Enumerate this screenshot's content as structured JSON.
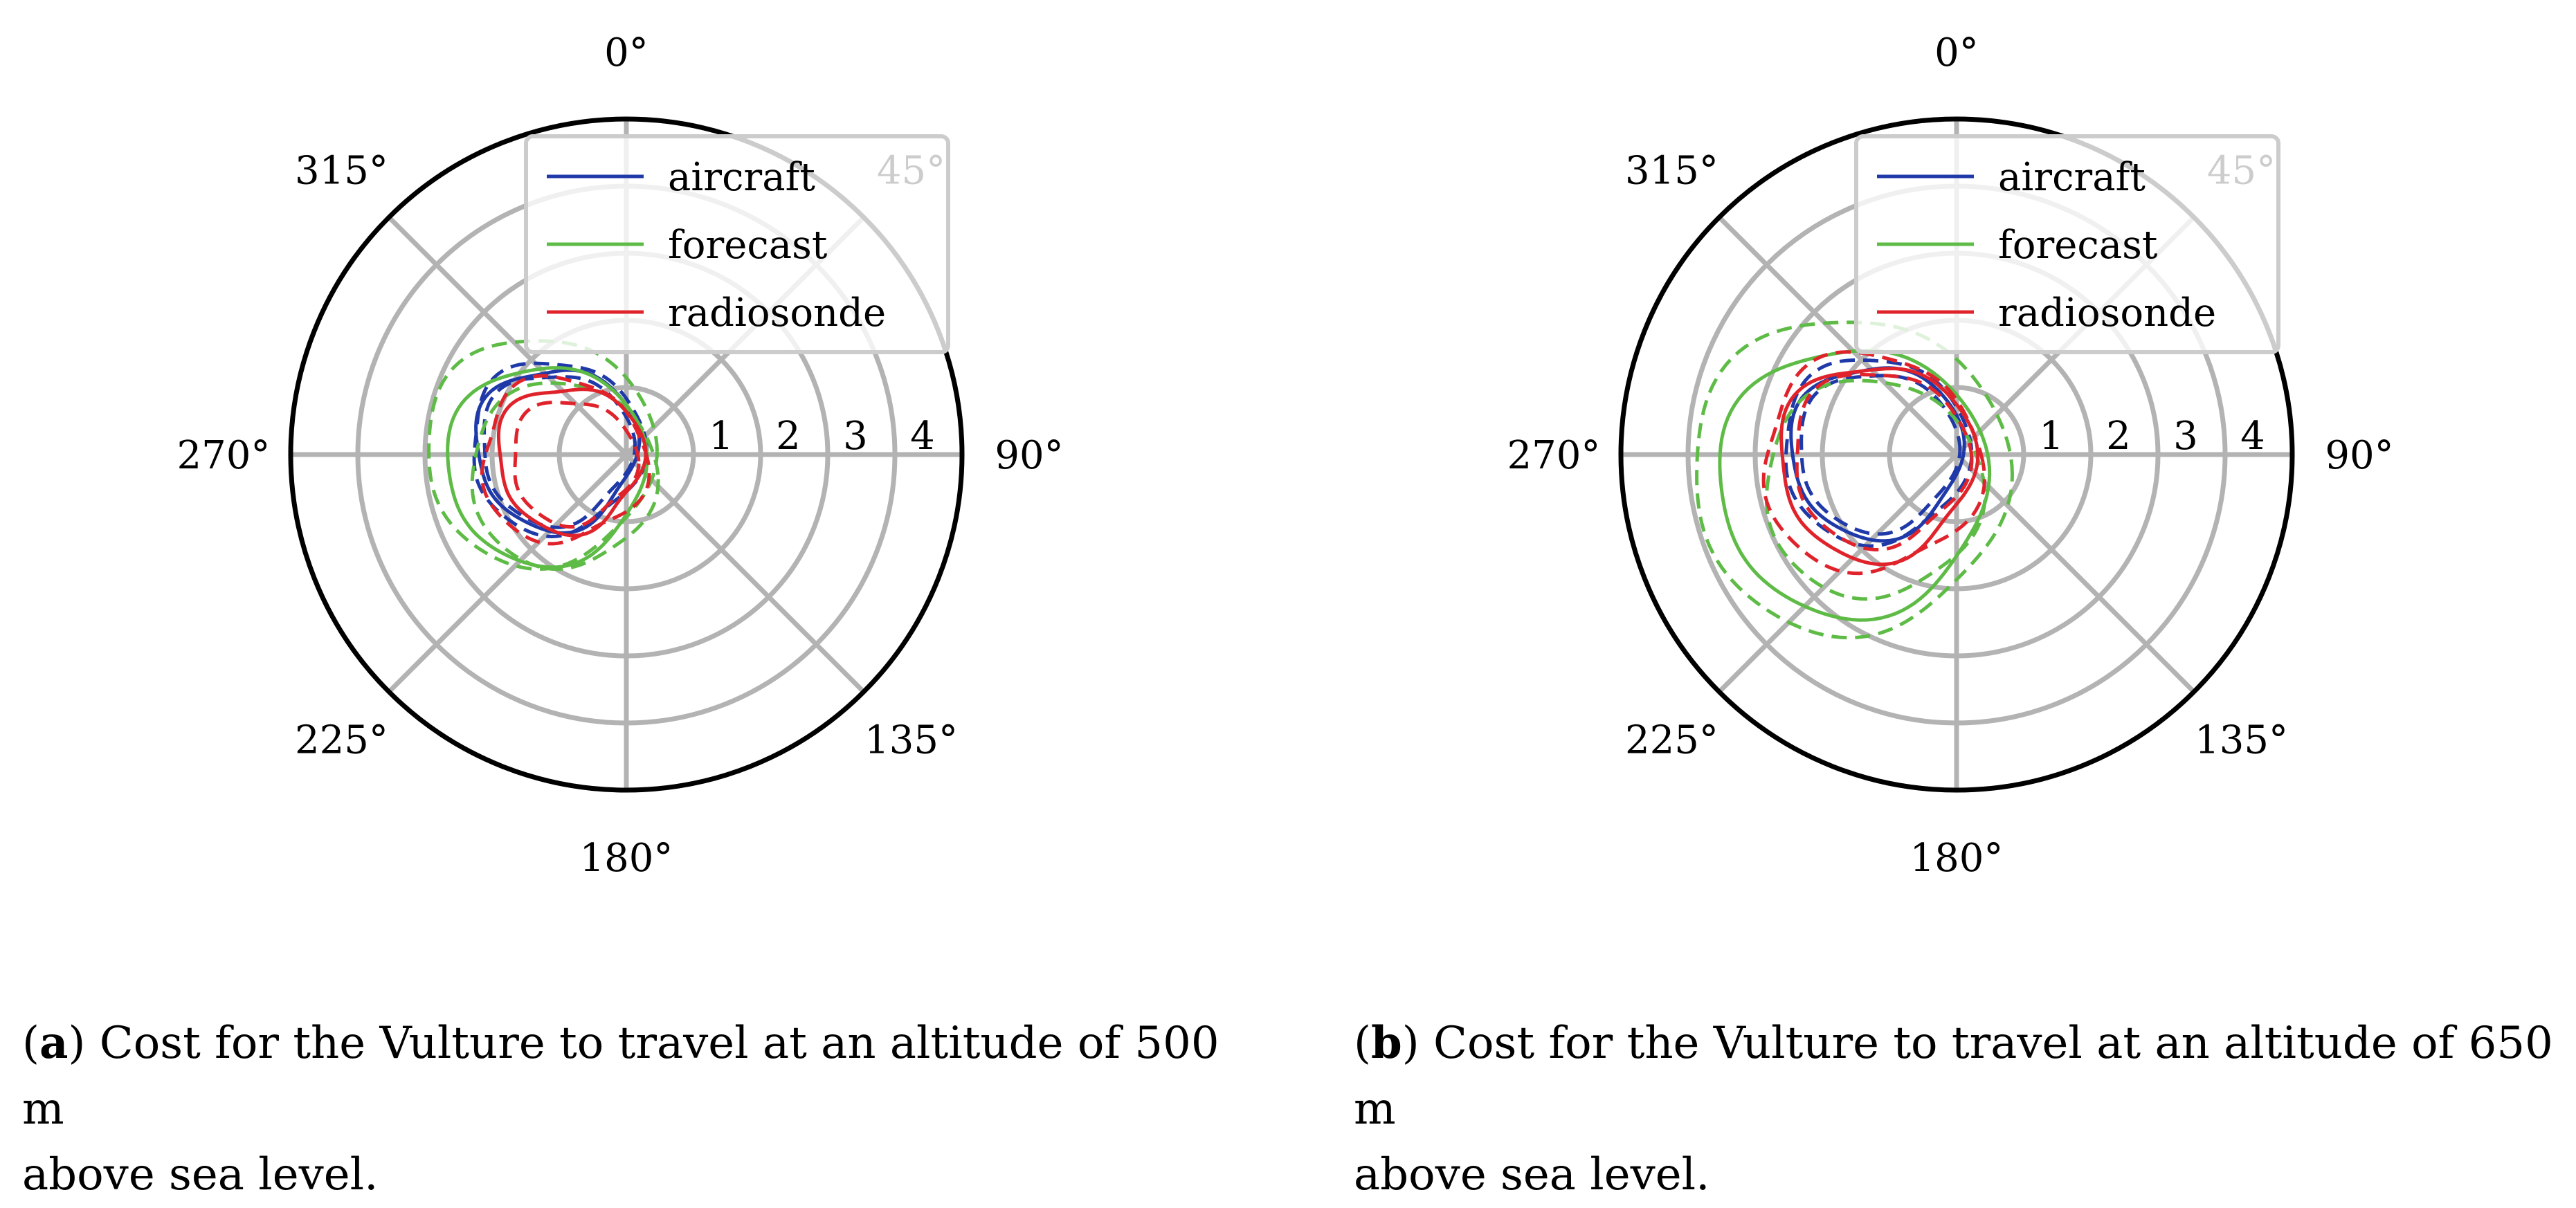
{
  "colors": {
    "aircraft": "#1f3aa8",
    "forecast": "#5dbb46",
    "radiosonde": "#e0232b",
    "grid": "#b3b3b3",
    "frame": "#000000",
    "legend_border": "#cccccc"
  },
  "chart_data": [
    {
      "type": "polar-line",
      "panel": "a",
      "angle_labels": [
        "0°",
        "45°",
        "90°",
        "135°",
        "180°",
        "225°",
        "270°",
        "315°"
      ],
      "radial_tick_labels": [
        "1",
        "2",
        "3",
        "4"
      ],
      "rlim": [
        0,
        5
      ],
      "theta_zero": "top",
      "theta_direction": "clockwise",
      "legend": {
        "placement": "top-right",
        "entries": [
          "aircraft",
          "forecast",
          "radiosonde"
        ]
      },
      "series": [
        {
          "name": "aircraft",
          "style": "solid",
          "center": [
            -1.05,
            0.1
          ],
          "radius": 1.2,
          "wobble": 0.05,
          "phase": 0.0
        },
        {
          "name": "aircraft",
          "style": "dashed",
          "center": [
            -1.05,
            0.1
          ],
          "radius": 1.12,
          "wobble": 0.05,
          "phase": 0.6
        },
        {
          "name": "aircraft",
          "style": "dashed",
          "center": [
            -1.05,
            0.12
          ],
          "radius": 1.28,
          "wobble": 0.05,
          "phase": 1.2
        },
        {
          "name": "forecast",
          "style": "solid",
          "center": [
            -1.2,
            -0.15
          ],
          "radius": 1.48,
          "wobble": 0.03,
          "phase": 0.0
        },
        {
          "name": "forecast",
          "style": "dashed",
          "center": [
            -1.3,
            0.05
          ],
          "radius": 1.7,
          "wobble": 0.03,
          "phase": 0.8
        },
        {
          "name": "forecast",
          "style": "dashed",
          "center": [
            -0.95,
            -0.3
          ],
          "radius": 1.38,
          "wobble": 0.03,
          "phase": 1.6
        },
        {
          "name": "radiosonde",
          "style": "solid",
          "center": [
            -0.85,
            -0.05
          ],
          "radius": 1.08,
          "wobble": 0.06,
          "phase": 0.3
        },
        {
          "name": "radiosonde",
          "style": "dashed",
          "center": [
            -0.8,
            -0.1
          ],
          "radius": 0.92,
          "wobble": 0.06,
          "phase": 1.0
        },
        {
          "name": "radiosonde",
          "style": "dashed",
          "center": [
            -0.95,
            -0.08
          ],
          "radius": 1.22,
          "wobble": 0.06,
          "phase": 2.0
        }
      ]
    },
    {
      "type": "polar-line",
      "panel": "b",
      "angle_labels": [
        "0°",
        "45°",
        "90°",
        "135°",
        "180°",
        "225°",
        "270°",
        "315°"
      ],
      "radial_tick_labels": [
        "1",
        "2",
        "3",
        "4"
      ],
      "rlim": [
        0,
        5
      ],
      "theta_zero": "top",
      "theta_direction": "clockwise",
      "legend": {
        "placement": "top-right",
        "entries": [
          "aircraft",
          "forecast",
          "radiosonde"
        ]
      },
      "series": [
        {
          "name": "aircraft",
          "style": "solid",
          "center": [
            -1.2,
            0.05
          ],
          "radius": 1.28,
          "wobble": 0.04,
          "phase": 0.0
        },
        {
          "name": "aircraft",
          "style": "dashed",
          "center": [
            -1.18,
            0.05
          ],
          "radius": 1.18,
          "wobble": 0.04,
          "phase": 0.6
        },
        {
          "name": "aircraft",
          "style": "dashed",
          "center": [
            -1.22,
            0.07
          ],
          "radius": 1.38,
          "wobble": 0.04,
          "phase": 1.2
        },
        {
          "name": "forecast",
          "style": "solid",
          "center": [
            -1.55,
            -0.4
          ],
          "radius": 2.0,
          "wobble": 0.03,
          "phase": 0.0
        },
        {
          "name": "forecast",
          "style": "dashed",
          "center": [
            -1.6,
            -0.3
          ],
          "radius": 2.35,
          "wobble": 0.03,
          "phase": 0.8
        },
        {
          "name": "forecast",
          "style": "dashed",
          "center": [
            -1.25,
            -0.5
          ],
          "radius": 1.62,
          "wobble": 0.03,
          "phase": 1.6
        },
        {
          "name": "radiosonde",
          "style": "solid",
          "center": [
            -1.2,
            -0.1
          ],
          "radius": 1.45,
          "wobble": 0.05,
          "phase": 0.3
        },
        {
          "name": "radiosonde",
          "style": "dashed",
          "center": [
            -1.15,
            -0.05
          ],
          "radius": 1.3,
          "wobble": 0.05,
          "phase": 1.0
        },
        {
          "name": "radiosonde",
          "style": "dashed",
          "center": [
            -1.28,
            -0.12
          ],
          "radius": 1.62,
          "wobble": 0.05,
          "phase": 2.0
        }
      ]
    }
  ],
  "captions": {
    "a": {
      "label": "a",
      "text_line1": "Cost for the Vulture to travel at an altitude of 500 m",
      "text_line2": "above sea level."
    },
    "b": {
      "label": "b",
      "text_line1": "Cost for the Vulture to travel at an altitude of 650 m",
      "text_line2": "above sea level."
    }
  }
}
